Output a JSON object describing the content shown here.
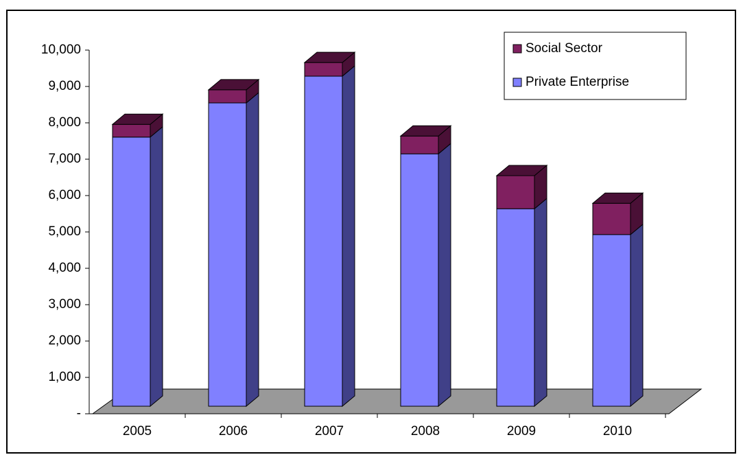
{
  "chart_data": {
    "type": "bar3d_stacked",
    "categories": [
      "2005",
      "2006",
      "2007",
      "2008",
      "2009",
      "2010"
    ],
    "series": [
      {
        "name": "Private Enterprise",
        "color": "#8080ff",
        "side_color": "#404088",
        "values": [
          7400,
          8340,
          9075,
          6940,
          5430,
          4720
        ]
      },
      {
        "name": "Social Sector",
        "color": "#802060",
        "side_color": "#4a1036",
        "values": [
          350,
          360,
          375,
          490,
          910,
          860
        ]
      }
    ],
    "ylim": [
      0,
      10000
    ],
    "yticks": [
      {
        "value": 0,
        "label": "-"
      },
      {
        "value": 1000,
        "label": "1,000"
      },
      {
        "value": 2000,
        "label": "2,000"
      },
      {
        "value": 3000,
        "label": "3,000"
      },
      {
        "value": 4000,
        "label": "4,000"
      },
      {
        "value": 5000,
        "label": "5,000"
      },
      {
        "value": 6000,
        "label": "6,000"
      },
      {
        "value": 7000,
        "label": "7,000"
      },
      {
        "value": 8000,
        "label": "8,000"
      },
      {
        "value": 9000,
        "label": "9,000"
      },
      {
        "value": 10000,
        "label": "10,000"
      }
    ],
    "legend": "top-right",
    "grid": false
  }
}
